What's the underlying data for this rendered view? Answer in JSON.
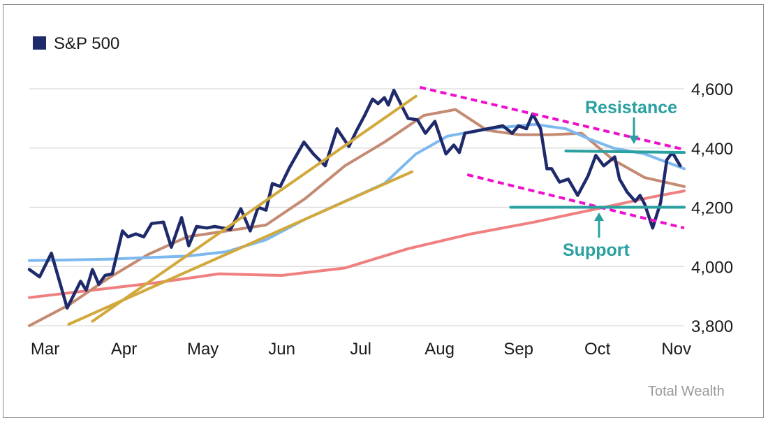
{
  "chart_data": {
    "type": "line",
    "title": "",
    "xlabel": "",
    "ylabel": "",
    "ylim": [
      3800,
      4600
    ],
    "yticks": [
      3800,
      4000,
      4200,
      4400,
      4600
    ],
    "ytick_labels": [
      "3,800",
      "4,000",
      "4,200",
      "4,400",
      "4,600"
    ],
    "x_range": [
      0,
      8.3
    ],
    "month_labels": [
      "Mar",
      "Apr",
      "May",
      "Jun",
      "Jul",
      "Aug",
      "Sep",
      "Oct",
      "Nov"
    ],
    "month_positions": [
      0.2,
      1.2,
      2.2,
      3.2,
      4.2,
      5.2,
      6.2,
      7.2,
      8.2
    ],
    "grid": "horizontal",
    "legend": {
      "position": "top-left",
      "label": "S&P 500",
      "color": "#1f2a6b"
    },
    "series": [
      {
        "name": "S&P 500",
        "color": "#1f2a6b",
        "x": [
          0.0,
          0.13,
          0.28,
          0.48,
          0.65,
          0.72,
          0.8,
          0.88,
          0.96,
          1.05,
          1.18,
          1.25,
          1.35,
          1.45,
          1.55,
          1.7,
          1.8,
          1.93,
          2.02,
          2.12,
          2.25,
          2.35,
          2.55,
          2.68,
          2.8,
          2.9,
          3.0,
          3.08,
          3.18,
          3.3,
          3.48,
          3.6,
          3.75,
          3.9,
          4.05,
          4.15,
          4.25,
          4.35,
          4.42,
          4.5,
          4.55,
          4.62,
          4.8,
          4.92,
          5.02,
          5.14,
          5.28,
          5.38,
          5.45,
          5.52,
          6.0,
          6.12,
          6.2,
          6.3,
          6.38,
          6.48,
          6.56,
          6.62,
          6.72,
          6.83,
          6.95,
          7.08,
          7.18,
          7.28,
          7.42,
          7.48,
          7.58,
          7.68,
          7.74,
          7.8,
          7.9,
          8.0,
          8.08,
          8.15,
          8.25
        ],
        "values": [
          3990,
          3965,
          4045,
          3860,
          3950,
          3920,
          3990,
          3940,
          3970,
          3975,
          4120,
          4100,
          4110,
          4100,
          4145,
          4150,
          4065,
          4165,
          4070,
          4135,
          4130,
          4135,
          4125,
          4195,
          4120,
          4200,
          4190,
          4280,
          4270,
          4335,
          4420,
          4380,
          4340,
          4465,
          4405,
          4460,
          4510,
          4565,
          4550,
          4570,
          4545,
          4595,
          4500,
          4495,
          4450,
          4490,
          4380,
          4410,
          4385,
          4450,
          4475,
          4450,
          4475,
          4465,
          4515,
          4465,
          4330,
          4330,
          4285,
          4295,
          4240,
          4305,
          4375,
          4340,
          4370,
          4295,
          4250,
          4220,
          4240,
          4210,
          4130,
          4215,
          4360,
          4385,
          4340
        ]
      },
      {
        "name": "",
        "color": "#c48a72",
        "x": [
          0.0,
          0.5,
          1.0,
          1.5,
          2.0,
          2.5,
          3.0,
          3.5,
          4.0,
          4.5,
          5.0,
          5.4,
          5.8,
          6.2,
          6.6,
          7.0,
          7.4,
          7.8,
          8.3
        ],
        "values": [
          3800,
          3870,
          3960,
          4040,
          4100,
          4120,
          4140,
          4230,
          4340,
          4420,
          4510,
          4530,
          4460,
          4445,
          4445,
          4450,
          4360,
          4300,
          4270
        ]
      },
      {
        "name": "",
        "color": "#7db9ee",
        "x": [
          0.0,
          0.5,
          1.0,
          1.5,
          2.0,
          2.5,
          3.0,
          3.5,
          4.0,
          4.5,
          4.9,
          5.3,
          5.7,
          6.0,
          6.4,
          6.8,
          7.1,
          7.4,
          7.8,
          8.3
        ],
        "values": [
          4020,
          4022,
          4025,
          4030,
          4035,
          4050,
          4090,
          4160,
          4220,
          4280,
          4380,
          4440,
          4460,
          4470,
          4480,
          4465,
          4430,
          4400,
          4380,
          4330
        ]
      },
      {
        "name": "",
        "color": "#f07f7f",
        "x": [
          0.0,
          0.8,
          1.6,
          2.4,
          3.2,
          4.0,
          4.8,
          5.6,
          6.4,
          7.2,
          7.9,
          8.3
        ],
        "values": [
          3895,
          3920,
          3945,
          3975,
          3970,
          3995,
          4060,
          4110,
          4150,
          4195,
          4235,
          4255
        ]
      }
    ],
    "trendlines": [
      {
        "style": "solid",
        "color": "#d1a83a",
        "x": [
          0.8,
          4.9
        ],
        "values": [
          3815,
          4575
        ]
      },
      {
        "style": "solid",
        "color": "#d1a83a",
        "x": [
          0.5,
          4.85
        ],
        "values": [
          3805,
          4320
        ]
      },
      {
        "style": "dashed",
        "color": "#ee11cc",
        "x": [
          4.95,
          8.3
        ],
        "values": [
          4605,
          4395
        ]
      },
      {
        "style": "dashed",
        "color": "#ee11cc",
        "x": [
          5.55,
          8.3
        ],
        "values": [
          4310,
          4130
        ]
      },
      {
        "style": "solid",
        "color": "#2aa0a0",
        "x": [
          6.8,
          8.3
        ],
        "values": [
          4390,
          4385
        ]
      },
      {
        "style": "solid",
        "color": "#2aa0a0",
        "x": [
          6.1,
          8.3
        ],
        "values": [
          4200,
          4200
        ]
      }
    ],
    "annotations": [
      {
        "text": "Resistance",
        "color": "#2aa0a0"
      },
      {
        "text": "Support",
        "color": "#2aa0a0"
      }
    ],
    "credit": "Total Wealth"
  }
}
